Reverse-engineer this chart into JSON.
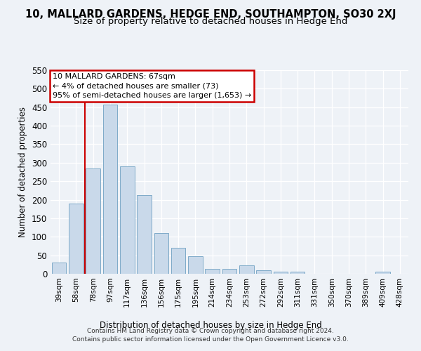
{
  "title": "10, MALLARD GARDENS, HEDGE END, SOUTHAMPTON, SO30 2XJ",
  "subtitle": "Size of property relative to detached houses in Hedge End",
  "xlabel": "Distribution of detached houses by size in Hedge End",
  "ylabel": "Number of detached properties",
  "categories": [
    "39sqm",
    "58sqm",
    "78sqm",
    "97sqm",
    "117sqm",
    "136sqm",
    "156sqm",
    "175sqm",
    "195sqm",
    "214sqm",
    "234sqm",
    "253sqm",
    "272sqm",
    "292sqm",
    "311sqm",
    "331sqm",
    "350sqm",
    "370sqm",
    "389sqm",
    "409sqm",
    "428sqm"
  ],
  "values": [
    30,
    190,
    285,
    457,
    290,
    212,
    110,
    70,
    47,
    13,
    13,
    22,
    10,
    5,
    6,
    0,
    0,
    0,
    0,
    6,
    0
  ],
  "bar_color": "#c9d9ea",
  "bar_edge_color": "#7eaac8",
  "vline_x": 1.5,
  "annotation_lines": [
    "10 MALLARD GARDENS: 67sqm",
    "← 4% of detached houses are smaller (73)",
    "95% of semi-detached houses are larger (1,653) →"
  ],
  "annotation_box_facecolor": "#ffffff",
  "annotation_box_edgecolor": "#cc0000",
  "vline_color": "#cc0000",
  "footer_line1": "Contains HM Land Registry data © Crown copyright and database right 2024.",
  "footer_line2": "Contains public sector information licensed under the Open Government Licence v3.0.",
  "ylim": [
    0,
    550
  ],
  "yticks": [
    0,
    50,
    100,
    150,
    200,
    250,
    300,
    350,
    400,
    450,
    500,
    550
  ],
  "bg_color": "#eef2f7",
  "grid_color": "#ffffff",
  "title_fontsize": 10.5,
  "subtitle_fontsize": 9.5,
  "bar_width": 0.85
}
